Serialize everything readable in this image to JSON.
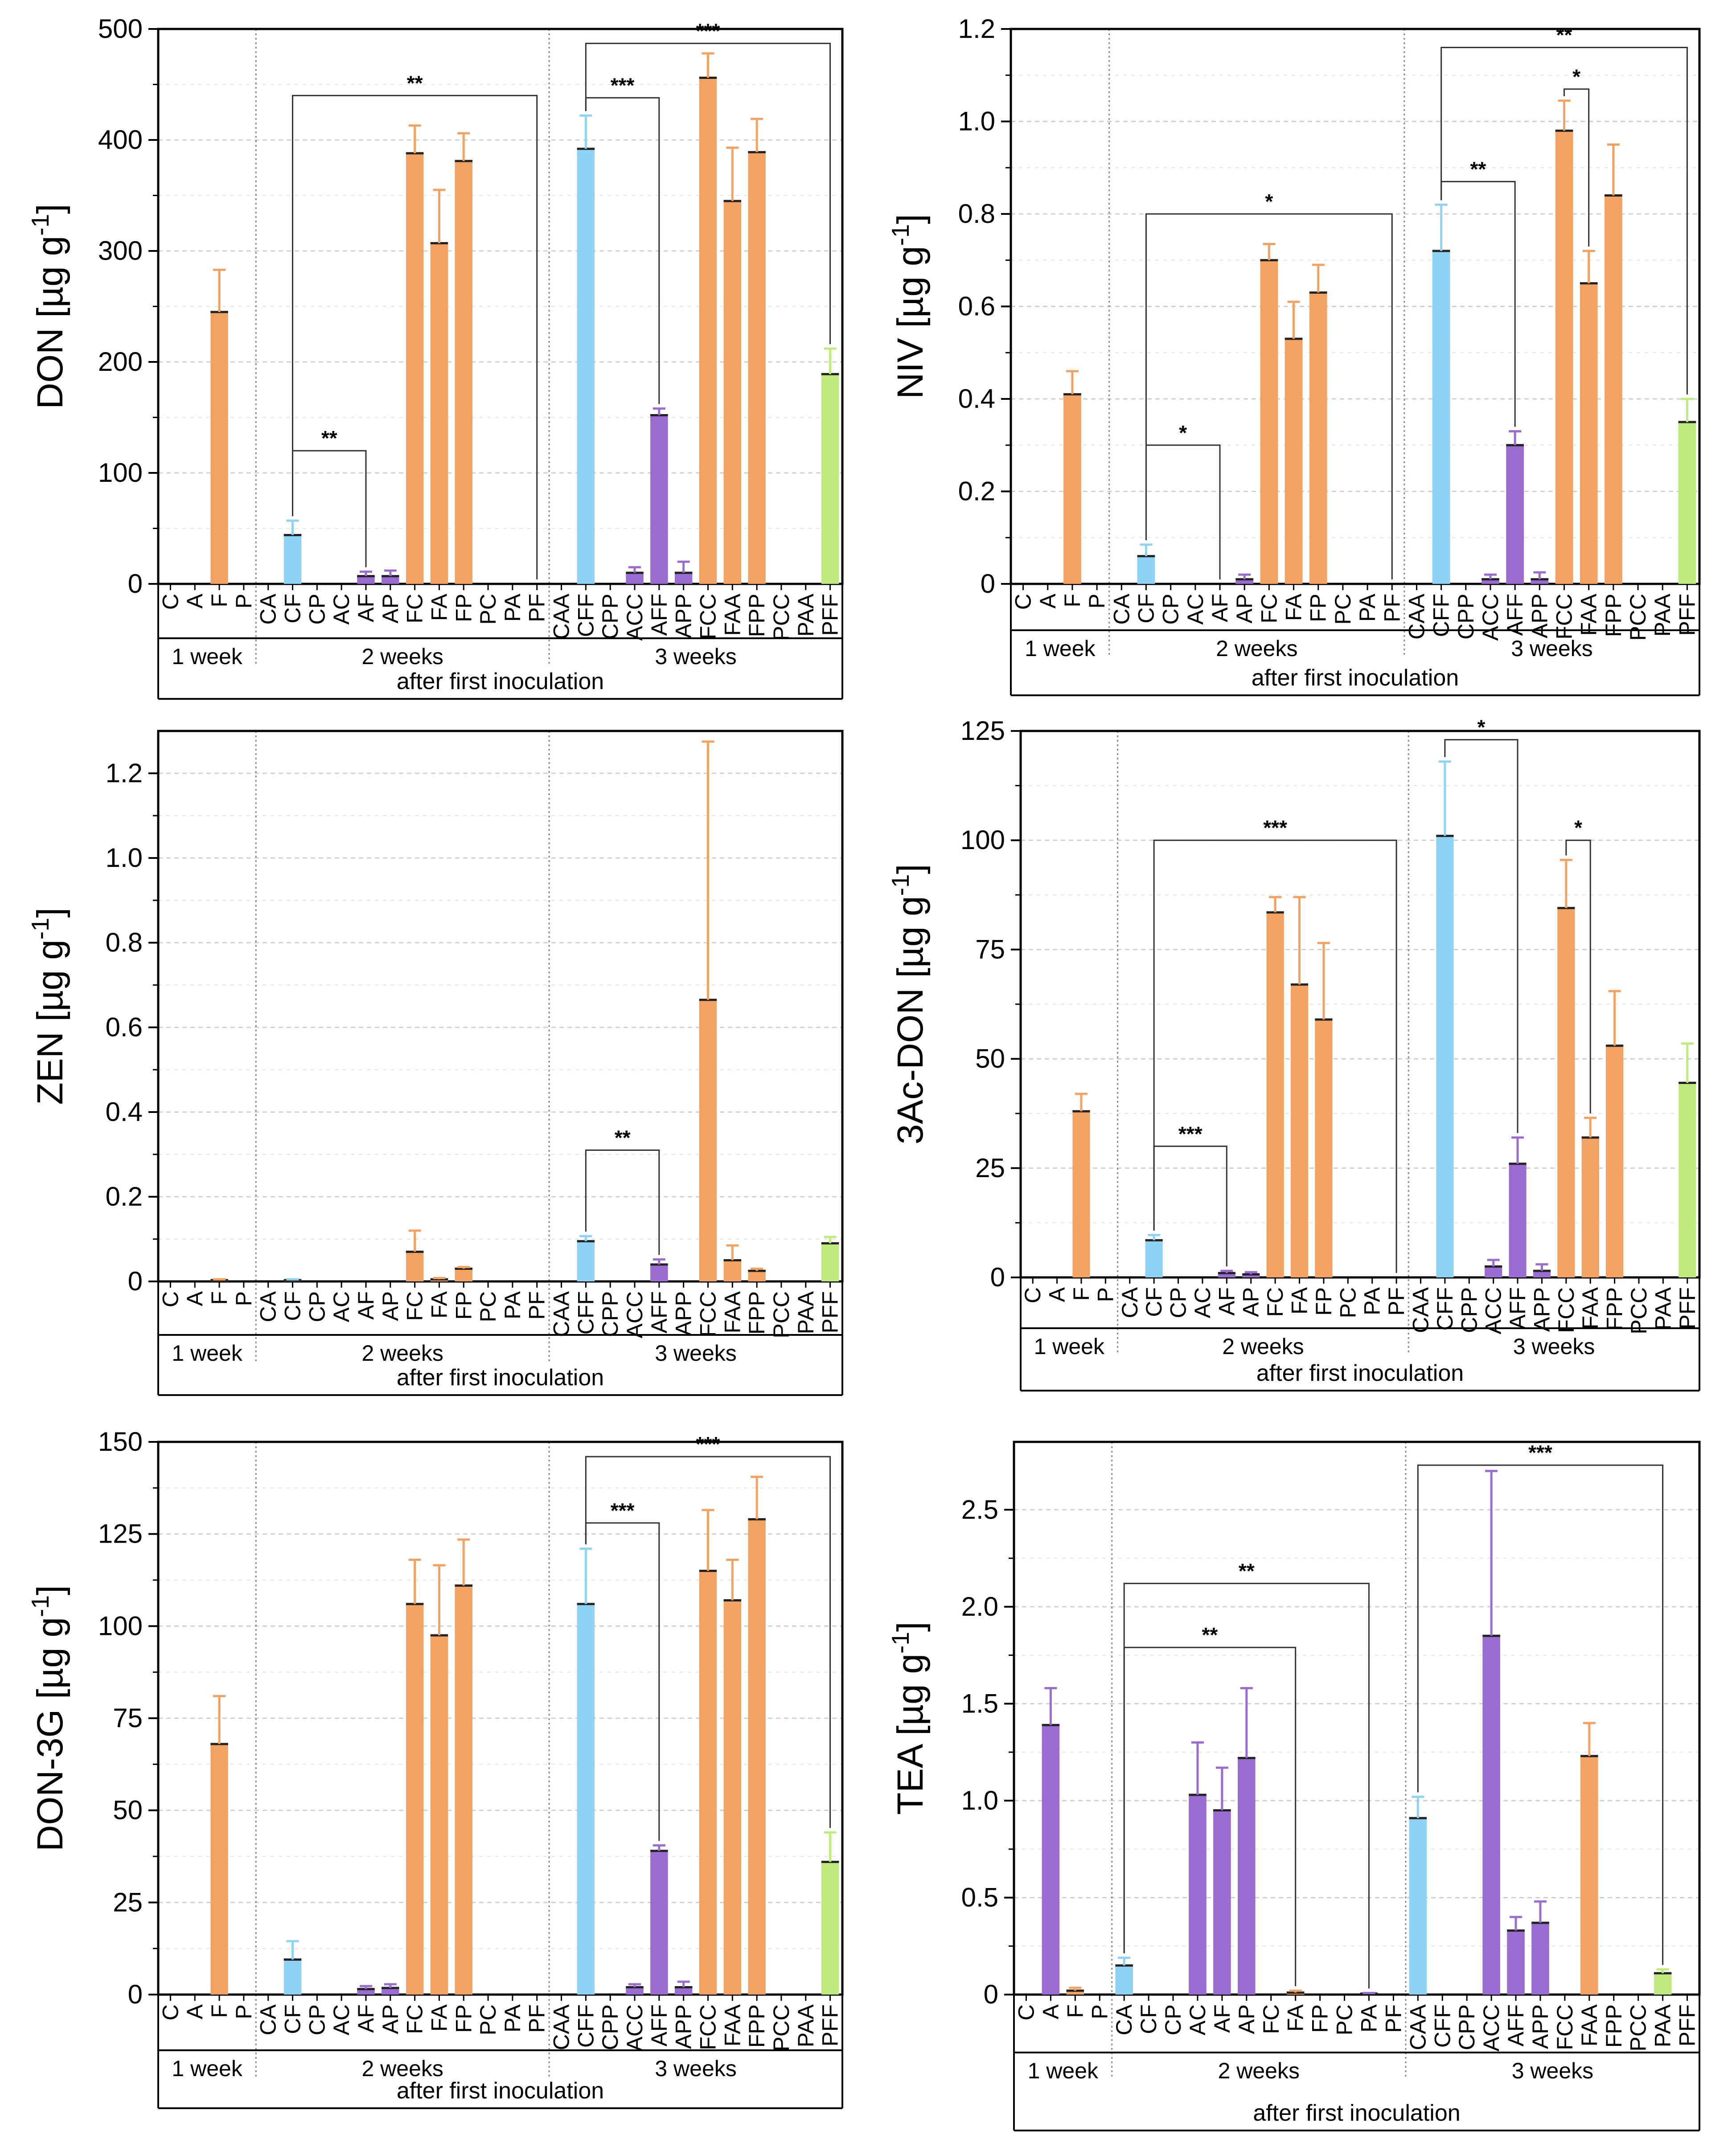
{
  "colors": {
    "C": "#F4A261",
    "F": "#F4A261",
    "A": "#9B6CD0",
    "blue": "#8ED3F5",
    "green": "#BFEA7C",
    "grid": "#D0D0D0",
    "axis": "#000000"
  },
  "chart_data": [
    {
      "type": "bar",
      "ylabel_main": "DON [µg g",
      "ylabel_sup": "-1",
      "ylabel_end": "]",
      "ylim": [
        0,
        500
      ],
      "yticks": [
        0,
        100,
        200,
        300,
        400,
        500
      ],
      "yticklabels": [
        "0",
        "100",
        "200",
        "300",
        "400",
        "500"
      ],
      "categories": [
        "C",
        "A",
        "F",
        "P",
        "CA",
        "CF",
        "CP",
        "AC",
        "AF",
        "AP",
        "FC",
        "FA",
        "FP",
        "PC",
        "PA",
        "PF",
        "CAA",
        "CFF",
        "CPP",
        "ACC",
        "AFF",
        "APP",
        "FCC",
        "FAA",
        "FPP",
        "PCC",
        "PAA",
        "PFF"
      ],
      "values": [
        0,
        0,
        245,
        0,
        0,
        44,
        0,
        0,
        7,
        7,
        388,
        307,
        381,
        0,
        0,
        0,
        0,
        392,
        0,
        10,
        152,
        10,
        456,
        345,
        389,
        0,
        0,
        189
      ],
      "errors": [
        0,
        0,
        38,
        0,
        0,
        13,
        0,
        0,
        4,
        5,
        25,
        48,
        25,
        0,
        0,
        0,
        0,
        30,
        0,
        5,
        6,
        10,
        22,
        48,
        30,
        0,
        0,
        23
      ],
      "colors": [
        "",
        "",
        "F",
        "",
        "",
        "B",
        "",
        "",
        "A",
        "A",
        "F",
        "F",
        "F",
        "",
        "",
        "",
        "",
        "B",
        "",
        "A",
        "A",
        "A",
        "F",
        "F",
        "F",
        "",
        "",
        "G"
      ],
      "group_labels": [
        "1 week",
        "2 weeks",
        "3 weeks"
      ],
      "xlabel": "after first inoculation",
      "significance": [
        {
          "from": 5,
          "to": 8,
          "y": 120,
          "label": "**"
        },
        {
          "from": 5,
          "to": 15,
          "y": 440,
          "label": "**"
        },
        {
          "from": 17,
          "to": 20,
          "y": 438,
          "label": "***"
        },
        {
          "from": 17,
          "to": 27,
          "y": 487,
          "label": "***"
        }
      ]
    },
    {
      "type": "bar",
      "ylabel_main": "NIV [µg g",
      "ylabel_sup": "-1",
      "ylabel_end": "]",
      "ylim": [
        0,
        1.2
      ],
      "yticks": [
        0,
        0.2,
        0.4,
        0.6,
        0.8,
        1.0,
        1.2
      ],
      "yticklabels": [
        "0",
        "0.2",
        "0.4",
        "0.6",
        "0.8",
        "1.0",
        "1.2"
      ],
      "categories": [
        "C",
        "A",
        "F",
        "P",
        "CA",
        "CF",
        "CP",
        "AC",
        "AF",
        "AP",
        "FC",
        "FA",
        "FP",
        "PC",
        "PA",
        "PF",
        "CAA",
        "CFF",
        "CPP",
        "ACC",
        "AFF",
        "APP",
        "FCC",
        "FAA",
        "FPP",
        "PCC",
        "PAA",
        "PFF"
      ],
      "values": [
        0,
        0,
        0.41,
        0,
        0,
        0.06,
        0,
        0,
        0,
        0.01,
        0.7,
        0.53,
        0.63,
        0,
        0,
        0,
        0,
        0.72,
        0,
        0.01,
        0.3,
        0.01,
        0.98,
        0.65,
        0.84,
        0,
        0,
        0.35
      ],
      "errors": [
        0,
        0,
        0.05,
        0,
        0,
        0.025,
        0,
        0,
        0,
        0.01,
        0.035,
        0.08,
        0.06,
        0,
        0,
        0,
        0,
        0.1,
        0,
        0.01,
        0.03,
        0.015,
        0.065,
        0.07,
        0.11,
        0,
        0,
        0.05
      ],
      "colors": [
        "",
        "",
        "F",
        "",
        "",
        "B",
        "",
        "",
        "",
        "A",
        "F",
        "F",
        "F",
        "",
        "",
        "",
        "",
        "B",
        "",
        "A",
        "A",
        "A",
        "F",
        "F",
        "F",
        "",
        "",
        "G"
      ],
      "group_labels": [
        "1 week",
        "2 weeks",
        "3 weeks"
      ],
      "xlabel": "after first inoculation",
      "significance": [
        {
          "from": 5,
          "to": 8,
          "y": 0.3,
          "label": "*"
        },
        {
          "from": 5,
          "to": 15,
          "y": 0.8,
          "label": "*"
        },
        {
          "from": 17,
          "to": 20,
          "y": 0.87,
          "label": "**"
        },
        {
          "from": 22,
          "to": 23,
          "y": 1.07,
          "label": "*"
        },
        {
          "from": 17,
          "to": 27,
          "y": 1.16,
          "label": "**"
        }
      ]
    },
    {
      "type": "bar",
      "ylabel_main": "ZEN [µg g",
      "ylabel_sup": "-1",
      "ylabel_end": "]",
      "ylim": [
        0,
        1.3
      ],
      "yticks": [
        0,
        0.2,
        0.4,
        0.6,
        0.8,
        1.0,
        1.2
      ],
      "yticklabels": [
        "0",
        "0.2",
        "0.4",
        "0.6",
        "0.8",
        "1.0",
        "1.2"
      ],
      "categories": [
        "C",
        "A",
        "F",
        "P",
        "CA",
        "CF",
        "CP",
        "AC",
        "AF",
        "AP",
        "FC",
        "FA",
        "FP",
        "PC",
        "PA",
        "PF",
        "CAA",
        "CFF",
        "CPP",
        "ACC",
        "AFF",
        "APP",
        "FCC",
        "FAA",
        "FPP",
        "PCC",
        "PAA",
        "PFF"
      ],
      "values": [
        0,
        0,
        0.003,
        0,
        0,
        0.003,
        0,
        0,
        0,
        0,
        0.07,
        0.005,
        0.03,
        0,
        0,
        0,
        0,
        0.095,
        0,
        0,
        0.04,
        0,
        0.665,
        0.05,
        0.025,
        0,
        0,
        0.09
      ],
      "errors": [
        0,
        0,
        0.002,
        0,
        0,
        0.002,
        0,
        0,
        0,
        0,
        0.05,
        0.003,
        0.004,
        0,
        0,
        0,
        0,
        0.012,
        0,
        0,
        0.012,
        0,
        0.61,
        0.035,
        0.005,
        0,
        0,
        0.015
      ],
      "colors": [
        "",
        "",
        "F",
        "",
        "",
        "B",
        "",
        "",
        "",
        "",
        "F",
        "F",
        "F",
        "",
        "",
        "",
        "",
        "B",
        "",
        "",
        "A",
        "",
        "F",
        "F",
        "F",
        "",
        "",
        "G"
      ],
      "group_labels": [
        "1 week",
        "2 weeks",
        "3 weeks"
      ],
      "xlabel": "after first inoculation",
      "significance": [
        {
          "from": 17,
          "to": 20,
          "y": 0.31,
          "label": "**"
        }
      ]
    },
    {
      "type": "bar",
      "ylabel_main": "3Ac-DON [µg g",
      "ylabel_sup": "-1",
      "ylabel_end": "]",
      "ylim": [
        0,
        125
      ],
      "yticks": [
        0,
        25,
        50,
        75,
        100,
        125
      ],
      "yticklabels": [
        "0",
        "25",
        "50",
        "75",
        "100",
        "125"
      ],
      "categories": [
        "C",
        "A",
        "F",
        "P",
        "CA",
        "CF",
        "CP",
        "AC",
        "AF",
        "AP",
        "FC",
        "FA",
        "FP",
        "PC",
        "PA",
        "PF",
        "CAA",
        "CFF",
        "CPP",
        "ACC",
        "AFF",
        "APP",
        "FCC",
        "FAA",
        "FPP",
        "PCC",
        "PAA",
        "PFF"
      ],
      "values": [
        0,
        0,
        38,
        0,
        0,
        8.5,
        0,
        0,
        1,
        0.7,
        83.5,
        67,
        59,
        0,
        0,
        0,
        0,
        101,
        0,
        2.5,
        26,
        1.5,
        84.5,
        32,
        53,
        0,
        0,
        44.5
      ],
      "errors": [
        0,
        0,
        4,
        0,
        0,
        1.2,
        0,
        0,
        0.5,
        0.5,
        3.5,
        20,
        17.5,
        0,
        0,
        0,
        0,
        17,
        0,
        1.5,
        6,
        1.5,
        11,
        4.5,
        12.5,
        0,
        0,
        9
      ],
      "colors": [
        "",
        "",
        "F",
        "",
        "",
        "B",
        "",
        "",
        "A",
        "A",
        "F",
        "F",
        "F",
        "",
        "",
        "",
        "",
        "B",
        "",
        "A",
        "A",
        "A",
        "F",
        "F",
        "F",
        "",
        "",
        "G"
      ],
      "group_labels": [
        "1 week",
        "2 weeks",
        "3 weeks"
      ],
      "xlabel": "after first inoculation",
      "significance": [
        {
          "from": 5,
          "to": 8,
          "y": 30,
          "label": "***"
        },
        {
          "from": 5,
          "to": 15,
          "y": 100,
          "label": "***"
        },
        {
          "from": 17,
          "to": 20,
          "y": 123,
          "label": "*"
        },
        {
          "from": 22,
          "to": 23,
          "y": 100,
          "label": "*"
        }
      ]
    },
    {
      "type": "bar",
      "ylabel_main": "DON-3G [µg g",
      "ylabel_sup": "-1",
      "ylabel_end": "]",
      "ylim": [
        0,
        150
      ],
      "yticks": [
        0,
        25,
        50,
        75,
        100,
        125,
        150
      ],
      "yticklabels": [
        "0",
        "25",
        "50",
        "75",
        "100",
        "125",
        "150"
      ],
      "categories": [
        "C",
        "A",
        "F",
        "P",
        "CA",
        "CF",
        "CP",
        "AC",
        "AF",
        "AP",
        "FC",
        "FA",
        "FP",
        "PC",
        "PA",
        "PF",
        "CAA",
        "CFF",
        "CPP",
        "ACC",
        "AFF",
        "APP",
        "FCC",
        "FAA",
        "FPP",
        "PCC",
        "PAA",
        "PFF"
      ],
      "values": [
        0,
        0,
        68,
        0,
        0,
        9.5,
        0,
        0,
        1.5,
        1.8,
        106,
        97.5,
        111,
        0,
        0,
        0,
        0,
        106,
        0,
        2,
        39,
        2,
        115,
        107,
        129,
        0,
        0,
        36
      ],
      "errors": [
        0,
        0,
        13,
        0,
        0,
        5,
        0,
        0,
        0.8,
        1,
        12,
        19,
        12.5,
        0,
        0,
        0,
        0,
        15,
        0,
        0.8,
        1.5,
        1.5,
        16.5,
        11,
        11.5,
        0,
        0,
        8
      ],
      "colors": [
        "",
        "",
        "F",
        "",
        "",
        "B",
        "",
        "",
        "A",
        "A",
        "F",
        "F",
        "F",
        "",
        "",
        "",
        "",
        "B",
        "",
        "A",
        "A",
        "A",
        "F",
        "F",
        "F",
        "",
        "",
        "G"
      ],
      "group_labels": [
        "1 week",
        "2 weeks",
        "3 weeks"
      ],
      "xlabel": "after first inoculation",
      "significance": [
        {
          "from": 17,
          "to": 20,
          "y": 128,
          "label": "***"
        },
        {
          "from": 17,
          "to": 27,
          "y": 146,
          "label": "***"
        }
      ]
    },
    {
      "type": "bar",
      "ylabel_main": "TEA [µg g",
      "ylabel_sup": "-1",
      "ylabel_end": "]",
      "ylim": [
        0,
        2.85
      ],
      "yticks": [
        0,
        0.5,
        1.0,
        1.5,
        2.0,
        2.5
      ],
      "yticklabels": [
        "0",
        "0.5",
        "1.0",
        "1.5",
        "2.0",
        "2.5"
      ],
      "categories": [
        "C",
        "A",
        "F",
        "P",
        "CA",
        "CF",
        "CP",
        "AC",
        "AF",
        "AP",
        "FC",
        "FA",
        "FP",
        "PC",
        "PA",
        "PF",
        "CAA",
        "CFF",
        "CPP",
        "ACC",
        "AFF",
        "APP",
        "FCC",
        "FAA",
        "FPP",
        "PCC",
        "PAA",
        "PFF"
      ],
      "values": [
        0,
        1.39,
        0.02,
        0,
        0.15,
        0,
        0,
        1.03,
        0.95,
        1.22,
        0,
        0.01,
        0,
        0,
        0.005,
        0,
        0.91,
        0,
        0,
        1.85,
        0.33,
        0.37,
        0,
        1.23,
        0,
        0,
        0.11,
        0
      ],
      "errors": [
        0,
        0.19,
        0.015,
        0,
        0.04,
        0,
        0,
        0.27,
        0.22,
        0.36,
        0,
        0.01,
        0,
        0,
        0.003,
        0,
        0.11,
        0,
        0,
        0.85,
        0.07,
        0.11,
        0,
        0.17,
        0,
        0,
        0.02,
        0
      ],
      "colors": [
        "",
        "A",
        "F",
        "",
        "B",
        "",
        "",
        "A",
        "A",
        "A",
        "",
        "F",
        "",
        "",
        "A",
        "",
        "B",
        "",
        "",
        "A",
        "A",
        "A",
        "",
        "F",
        "",
        "",
        "G",
        ""
      ],
      "group_labels": [
        "1 week",
        "2 weeks",
        "3 weeks"
      ],
      "xlabel": "after first inoculation",
      "significance": [
        {
          "from": 4,
          "to": 11,
          "y": 1.79,
          "label": "**"
        },
        {
          "from": 4,
          "to": 14,
          "y": 2.12,
          "label": "**"
        },
        {
          "from": 16,
          "to": 26,
          "y": 2.73,
          "label": "***"
        }
      ]
    }
  ]
}
